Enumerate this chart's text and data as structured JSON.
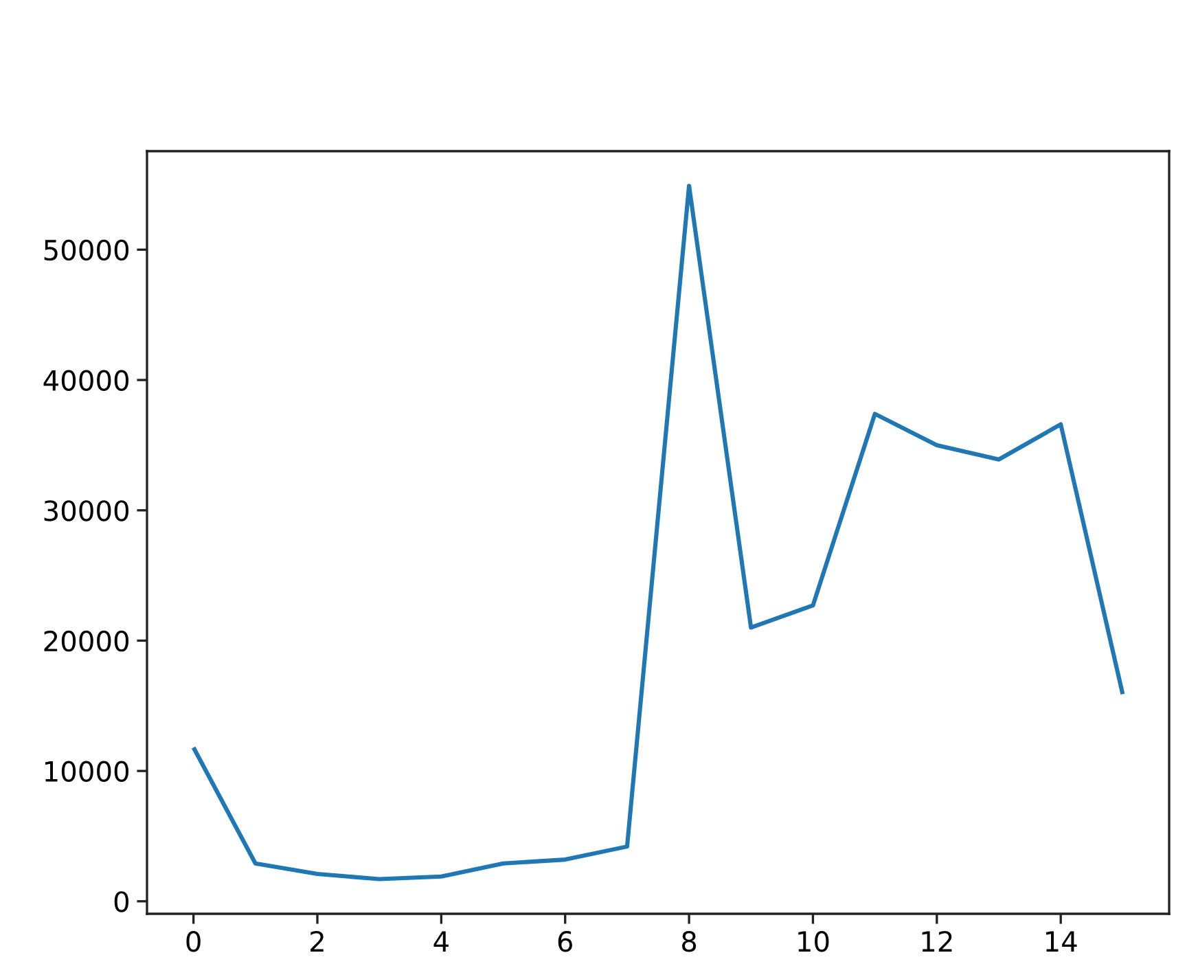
{
  "chart_data": {
    "type": "line",
    "x": [
      0,
      1,
      2,
      3,
      4,
      5,
      6,
      7,
      8,
      9,
      10,
      11,
      12,
      13,
      14,
      15
    ],
    "series": [
      {
        "color": "#1f77b4",
        "values": [
          11800,
          2900,
          2100,
          1700,
          1900,
          2900,
          3200,
          4200,
          54900,
          21000,
          22700,
          37400,
          35000,
          33900,
          36600,
          15900
        ]
      }
    ],
    "xlim": [
      -0.75,
      15.75
    ],
    "xticks": [
      0,
      2,
      4,
      6,
      8,
      10,
      12,
      14
    ],
    "ylim": [
      -960,
      57560
    ],
    "yticks": [
      0,
      10000,
      20000,
      30000,
      40000,
      50000
    ],
    "line_style": "solid"
  }
}
